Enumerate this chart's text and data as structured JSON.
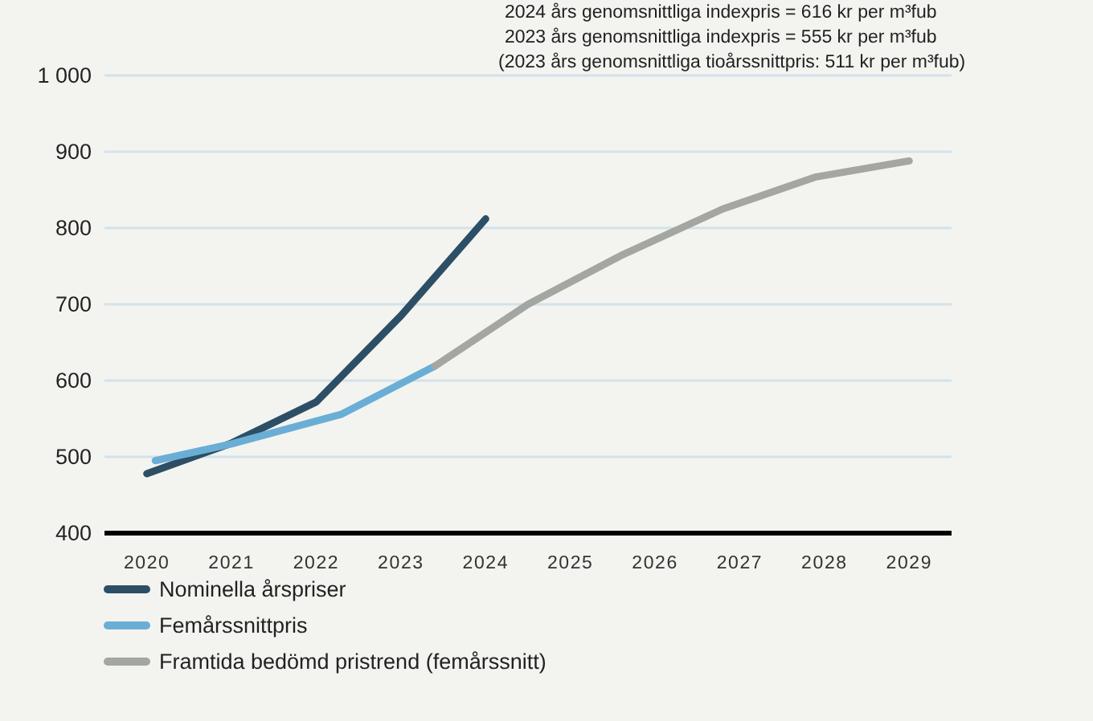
{
  "chart_data": {
    "type": "line",
    "annotations": [
      "2024 års genomsnittliga indexpris = 616 kr per m³fub",
      "2023 års genomsnittliga indexpris = 555 kr per m³fub",
      "(2023 års genomsnittliga tioårssnittpris: 511 kr per m³fub)"
    ],
    "xlim": [
      2019.5,
      2029.5
    ],
    "xticks": [
      2020,
      2021,
      2022,
      2023,
      2024,
      2025,
      2026,
      2027,
      2028,
      2029
    ],
    "ylim": [
      400,
      1000
    ],
    "yticks": [
      400,
      500,
      600,
      700,
      800,
      900,
      {
        "value": 1000,
        "label": "1 000"
      }
    ],
    "grid": "y",
    "legend": "bottom",
    "marker": "none",
    "line_style": "solid",
    "series": [
      {
        "name": "Nominella årspriser",
        "color": "#2d4f66",
        "x": [
          2020,
          2021,
          2022,
          2023,
          2024
        ],
        "values": [
          478,
          518,
          572,
          685,
          812
        ]
      },
      {
        "name": "Femårssnittpris",
        "color": "#6aaed6",
        "x": [
          2020.1,
          2021,
          2022.3,
          2023.4
        ],
        "values": [
          495,
          517,
          556,
          619
        ]
      },
      {
        "name": "Framtida bedömd pristrend (femårssnitt)",
        "color": "#a3a6a1",
        "x": [
          2023.4,
          2024.5,
          2025.6,
          2026.8,
          2027.9,
          2029
        ],
        "values": [
          619,
          700,
          764,
          825,
          867,
          888
        ]
      }
    ]
  }
}
